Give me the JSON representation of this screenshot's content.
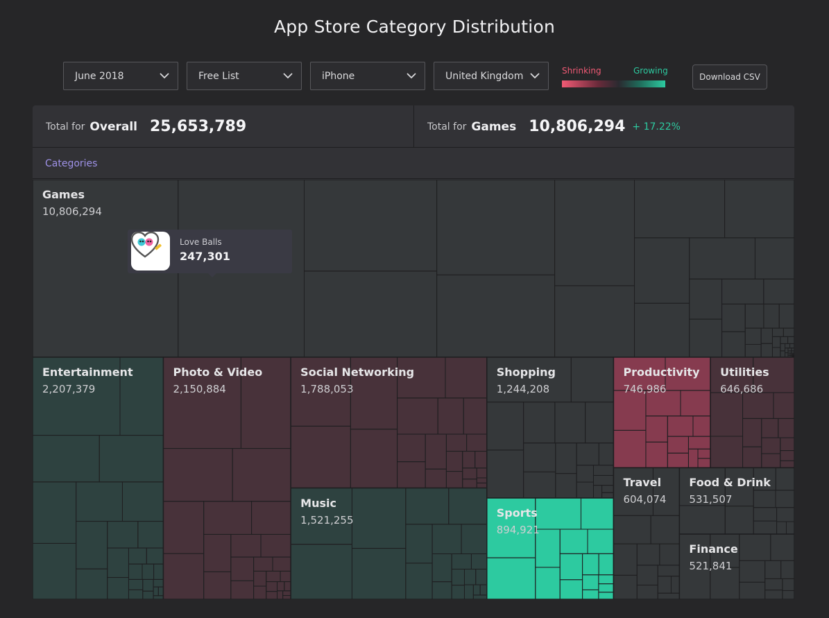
{
  "page": {
    "title": "App Store Category Distribution"
  },
  "filters": {
    "month": "June 2018",
    "list": "Free List",
    "device": "iPhone",
    "country": "United Kingdom"
  },
  "legend": {
    "shrinking": "Shrinking",
    "growing": "Growing",
    "colors": {
      "shrinking": "#f25a75",
      "growing": "#2dcaa0"
    }
  },
  "download": {
    "label": "Download CSV"
  },
  "totals": {
    "overall": {
      "prefix": "Total for",
      "name": "Overall",
      "value": "25,653,789"
    },
    "selected": {
      "prefix": "Total for",
      "name": "Games",
      "value": "10,806,294",
      "change": "+ 17.22%"
    }
  },
  "breadcrumb": {
    "label": "Categories"
  },
  "tooltip": {
    "app_name": "Love Balls",
    "value": "247,301",
    "icon": "love-balls-app-icon"
  },
  "icons": {
    "dropdown": "chevron-down-icon"
  },
  "chart_data": {
    "type": "treemap",
    "title": "App Store Category Distribution",
    "color_scale": {
      "low": "Shrinking",
      "high": "Growing"
    },
    "categories": [
      {
        "name": "Games",
        "value": 10806294,
        "label": "10,806,294",
        "trend": "neutral"
      },
      {
        "name": "Entertainment",
        "value": 2207379,
        "label": "2,207,379",
        "trend": "growing-slight"
      },
      {
        "name": "Photo & Video",
        "value": 2150884,
        "label": "2,150,884",
        "trend": "shrinking-slight"
      },
      {
        "name": "Social Networking",
        "value": 1788053,
        "label": "1,788,053",
        "trend": "shrinking-slight"
      },
      {
        "name": "Music",
        "value": 1521255,
        "label": "1,521,255",
        "trend": "growing-slight"
      },
      {
        "name": "Shopping",
        "value": 1244208,
        "label": "1,244,208",
        "trend": "neutral"
      },
      {
        "name": "Sports",
        "value": 894921,
        "label": "894,921",
        "trend": "growing-strong"
      },
      {
        "name": "Productivity",
        "value": 746986,
        "label": "746,986",
        "trend": "shrinking-medium"
      },
      {
        "name": "Utilities",
        "value": 646686,
        "label": "646,686",
        "trend": "shrinking-slight"
      },
      {
        "name": "Travel",
        "value": 604074,
        "label": "604,074",
        "trend": "neutral"
      },
      {
        "name": "Food & Drink",
        "value": 531507,
        "label": "531,507",
        "trend": "neutral"
      },
      {
        "name": "Finance",
        "value": 521841,
        "label": "521,841",
        "trend": "neutral"
      }
    ]
  }
}
